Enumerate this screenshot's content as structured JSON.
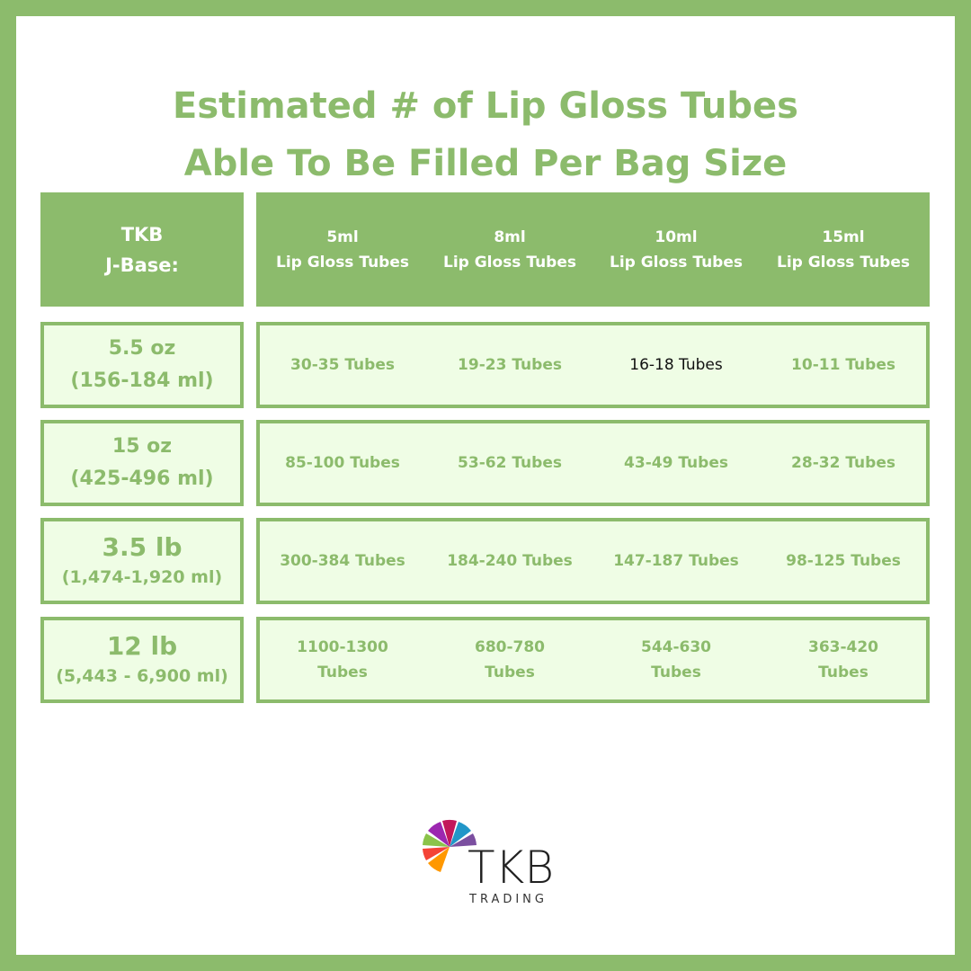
{
  "title": [
    "Estimated # of Lip Gloss Tubes",
    "Able To Be Filled Per Bag Size"
  ],
  "table": {
    "corner": [
      "TKB",
      "J-Base:"
    ],
    "columns": [
      [
        "5ml",
        "Lip Gloss Tubes"
      ],
      [
        "8ml",
        "Lip Gloss Tubes"
      ],
      [
        "10ml",
        "Lip Gloss Tubes"
      ],
      [
        "15ml",
        "Lip Gloss Tubes"
      ]
    ],
    "rows": [
      {
        "size": "5.5 oz",
        "volume": "(156-184 ml)",
        "cells": [
          "30-35 Tubes",
          "19-23 Tubes",
          "16-18 Tubes",
          "10-11 Tubes"
        ]
      },
      {
        "size": "15 oz",
        "volume": "(425-496 ml)",
        "cells": [
          "85-100 Tubes",
          "53-62 Tubes",
          "43-49 Tubes",
          "28-32 Tubes"
        ]
      },
      {
        "size": "3.5 lb",
        "volume": "(1,474-1,920 ml)",
        "cells": [
          "300-384 Tubes",
          "184-240 Tubes",
          "147-187 Tubes",
          "98-125 Tubes"
        ]
      },
      {
        "size": "12 lb",
        "volume": "(5,443 - 6,900 ml)",
        "cells": [
          "1100-1300 Tubes",
          "680-780 Tubes",
          "544-630 Tubes",
          "363-420 Tubes"
        ]
      }
    ]
  },
  "logo": {
    "name": "TKB",
    "tagline": "TRADING"
  }
}
